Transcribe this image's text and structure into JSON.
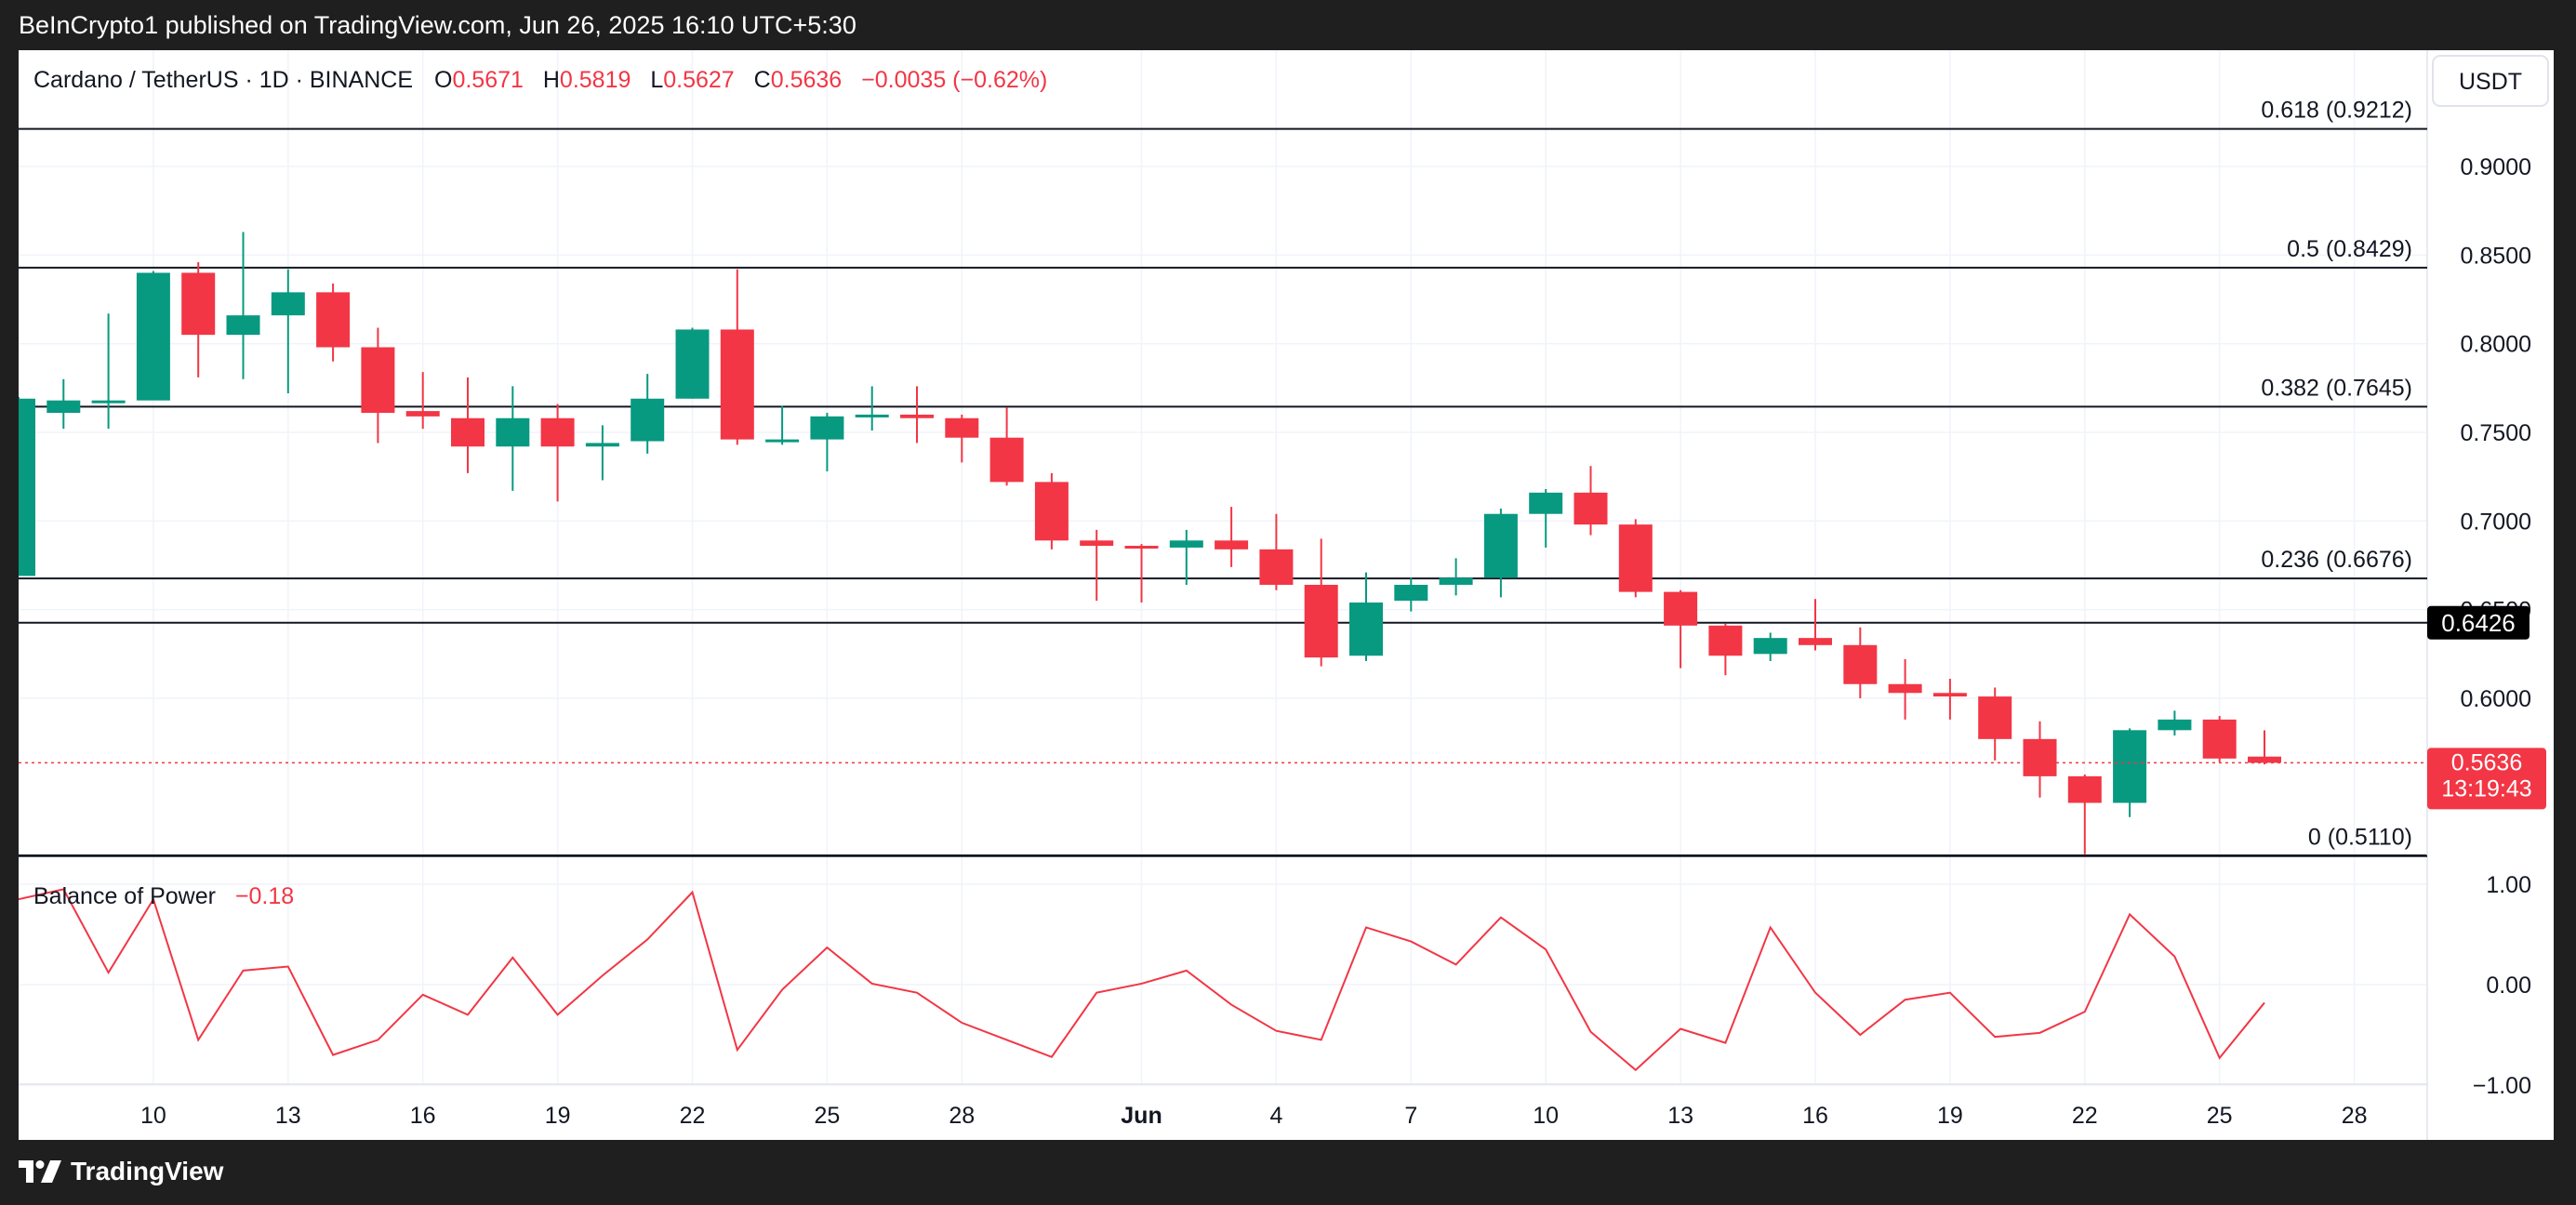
{
  "header": {
    "published": "BeInCrypto1 published on TradingView.com, Jun 26, 2025 16:10 UTC+5:30"
  },
  "symbol": {
    "name": "Cardano / TetherUS · 1D · BINANCE",
    "o_label": "O",
    "o": "0.5671",
    "h_label": "H",
    "h": "0.5819",
    "l_label": "L",
    "l": "0.5627",
    "c_label": "C",
    "c": "0.5636",
    "change": "−0.0035 (−0.62%)"
  },
  "currency": "USDT",
  "price_axis_labels": [
    "0.9000",
    "0.8500",
    "0.8000",
    "0.7500",
    "0.7000",
    "0.6500",
    "0.6000"
  ],
  "badges": {
    "level": "0.6426",
    "last_price": "0.5636",
    "countdown": "13:19:43"
  },
  "fib_levels": [
    {
      "label": "0.618 (0.9212)",
      "value": 0.9212
    },
    {
      "label": "0.5 (0.8429)",
      "value": 0.8429
    },
    {
      "label": "0.382 (0.7645)",
      "value": 0.7645
    },
    {
      "label": "0.236 (0.6676)",
      "value": 0.6676
    },
    {
      "label": "0 (0.5110)",
      "value": 0.511
    }
  ],
  "indicator": {
    "name": "Balance of Power",
    "value": "−0.18",
    "axis_labels": [
      "1.00",
      "0.00",
      "−1.00"
    ]
  },
  "x_axis_labels": [
    "10",
    "13",
    "16",
    "19",
    "22",
    "25",
    "28",
    "Jun",
    "4",
    "7",
    "10",
    "13",
    "16",
    "19",
    "22",
    "25",
    "28"
  ],
  "brand": "TradingView",
  "colors": {
    "up": "#089981",
    "down": "#f23645",
    "text": "#131722",
    "grid": "#f0f3fa"
  },
  "chart_data": {
    "type": "candlestick",
    "title": "Cardano / TetherUS · 1D · BINANCE",
    "x_start": "May 7, 2025",
    "x_end": "Jun 26, 2025",
    "ylim": [
      0.505,
      0.945
    ],
    "candles": [
      {
        "date": "May 7",
        "o": 0.669,
        "h": 0.77,
        "l": 0.669,
        "c": 0.769
      },
      {
        "date": "May 8",
        "o": 0.761,
        "h": 0.78,
        "l": 0.752,
        "c": 0.768
      },
      {
        "date": "May 9",
        "o": 0.768,
        "h": 0.817,
        "l": 0.752,
        "c": 0.768
      },
      {
        "date": "May 10",
        "o": 0.768,
        "h": 0.841,
        "l": 0.77,
        "c": 0.84
      },
      {
        "date": "May 11",
        "o": 0.84,
        "h": 0.846,
        "l": 0.781,
        "c": 0.805
      },
      {
        "date": "May 12",
        "o": 0.805,
        "h": 0.863,
        "l": 0.78,
        "c": 0.816
      },
      {
        "date": "May 13",
        "o": 0.816,
        "h": 0.842,
        "l": 0.772,
        "c": 0.829
      },
      {
        "date": "May 14",
        "o": 0.829,
        "h": 0.834,
        "l": 0.79,
        "c": 0.798
      },
      {
        "date": "May 15",
        "o": 0.798,
        "h": 0.809,
        "l": 0.744,
        "c": 0.761
      },
      {
        "date": "May 16",
        "o": 0.762,
        "h": 0.784,
        "l": 0.752,
        "c": 0.759
      },
      {
        "date": "May 17",
        "o": 0.758,
        "h": 0.781,
        "l": 0.727,
        "c": 0.742
      },
      {
        "date": "May 18",
        "o": 0.742,
        "h": 0.776,
        "l": 0.717,
        "c": 0.758
      },
      {
        "date": "May 19",
        "o": 0.758,
        "h": 0.766,
        "l": 0.711,
        "c": 0.742
      },
      {
        "date": "May 20",
        "o": 0.742,
        "h": 0.754,
        "l": 0.723,
        "c": 0.744
      },
      {
        "date": "May 21",
        "o": 0.745,
        "h": 0.783,
        "l": 0.738,
        "c": 0.769
      },
      {
        "date": "May 22",
        "o": 0.769,
        "h": 0.809,
        "l": 0.769,
        "c": 0.808
      },
      {
        "date": "May 23",
        "o": 0.808,
        "h": 0.842,
        "l": 0.743,
        "c": 0.746
      },
      {
        "date": "May 24",
        "o": 0.746,
        "h": 0.765,
        "l": 0.743,
        "c": 0.746
      },
      {
        "date": "May 25",
        "o": 0.746,
        "h": 0.761,
        "l": 0.728,
        "c": 0.759
      },
      {
        "date": "May 26",
        "o": 0.759,
        "h": 0.776,
        "l": 0.751,
        "c": 0.76
      },
      {
        "date": "May 27",
        "o": 0.76,
        "h": 0.776,
        "l": 0.744,
        "c": 0.758
      },
      {
        "date": "May 28",
        "o": 0.758,
        "h": 0.76,
        "l": 0.733,
        "c": 0.747
      },
      {
        "date": "May 29",
        "o": 0.747,
        "h": 0.764,
        "l": 0.72,
        "c": 0.722
      },
      {
        "date": "May 30",
        "o": 0.722,
        "h": 0.727,
        "l": 0.684,
        "c": 0.689
      },
      {
        "date": "May 31",
        "o": 0.689,
        "h": 0.695,
        "l": 0.655,
        "c": 0.686
      },
      {
        "date": "Jun 1",
        "o": 0.686,
        "h": 0.687,
        "l": 0.654,
        "c": 0.685
      },
      {
        "date": "Jun 2",
        "o": 0.685,
        "h": 0.695,
        "l": 0.664,
        "c": 0.689
      },
      {
        "date": "Jun 3",
        "o": 0.689,
        "h": 0.708,
        "l": 0.674,
        "c": 0.684
      },
      {
        "date": "Jun 4",
        "o": 0.684,
        "h": 0.704,
        "l": 0.661,
        "c": 0.664
      },
      {
        "date": "Jun 5",
        "o": 0.664,
        "h": 0.69,
        "l": 0.618,
        "c": 0.623
      },
      {
        "date": "Jun 6",
        "o": 0.624,
        "h": 0.671,
        "l": 0.621,
        "c": 0.654
      },
      {
        "date": "Jun 7",
        "o": 0.655,
        "h": 0.668,
        "l": 0.649,
        "c": 0.664
      },
      {
        "date": "Jun 8",
        "o": 0.664,
        "h": 0.679,
        "l": 0.658,
        "c": 0.668
      },
      {
        "date": "Jun 9",
        "o": 0.668,
        "h": 0.707,
        "l": 0.657,
        "c": 0.704
      },
      {
        "date": "Jun 10",
        "o": 0.704,
        "h": 0.718,
        "l": 0.685,
        "c": 0.716
      },
      {
        "date": "Jun 11",
        "o": 0.716,
        "h": 0.731,
        "l": 0.692,
        "c": 0.698
      },
      {
        "date": "Jun 12",
        "o": 0.698,
        "h": 0.701,
        "l": 0.657,
        "c": 0.66
      },
      {
        "date": "Jun 13",
        "o": 0.66,
        "h": 0.661,
        "l": 0.617,
        "c": 0.641
      },
      {
        "date": "Jun 14",
        "o": 0.641,
        "h": 0.642,
        "l": 0.613,
        "c": 0.624
      },
      {
        "date": "Jun 15",
        "o": 0.625,
        "h": 0.637,
        "l": 0.621,
        "c": 0.634
      },
      {
        "date": "Jun 16",
        "o": 0.634,
        "h": 0.656,
        "l": 0.627,
        "c": 0.63
      },
      {
        "date": "Jun 17",
        "o": 0.63,
        "h": 0.64,
        "l": 0.6,
        "c": 0.608
      },
      {
        "date": "Jun 18",
        "o": 0.608,
        "h": 0.622,
        "l": 0.588,
        "c": 0.603
      },
      {
        "date": "Jun 19",
        "o": 0.603,
        "h": 0.611,
        "l": 0.588,
        "c": 0.601
      },
      {
        "date": "Jun 20",
        "o": 0.601,
        "h": 0.606,
        "l": 0.565,
        "c": 0.577
      },
      {
        "date": "Jun 21",
        "o": 0.577,
        "h": 0.587,
        "l": 0.544,
        "c": 0.556
      },
      {
        "date": "Jun 22",
        "o": 0.556,
        "h": 0.557,
        "l": 0.512,
        "c": 0.541
      },
      {
        "date": "Jun 23",
        "o": 0.541,
        "h": 0.583,
        "l": 0.533,
        "c": 0.582
      },
      {
        "date": "Jun 24",
        "o": 0.582,
        "h": 0.593,
        "l": 0.579,
        "c": 0.588
      },
      {
        "date": "Jun 25",
        "o": 0.588,
        "h": 0.59,
        "l": 0.564,
        "c": 0.566
      },
      {
        "date": "Jun 26",
        "o": 0.5671,
        "h": 0.5819,
        "l": 0.5627,
        "c": 0.5636
      }
    ],
    "bop": [
      0.85,
      0.95,
      0.12,
      0.85,
      -0.55,
      0.14,
      0.18,
      -0.7,
      -0.55,
      -0.1,
      -0.3,
      0.27,
      -0.3,
      0.09,
      0.45,
      0.92,
      -0.65,
      -0.05,
      0.37,
      0.01,
      -0.08,
      -0.38,
      -0.55,
      -0.72,
      -0.08,
      0.01,
      0.14,
      -0.2,
      -0.46,
      -0.55,
      0.57,
      0.43,
      0.2,
      0.67,
      0.35,
      -0.47,
      -0.85,
      -0.44,
      -0.58,
      0.57,
      -0.08,
      -0.5,
      -0.15,
      -0.08,
      -0.52,
      -0.48,
      -0.27,
      0.7,
      0.28,
      -0.73,
      -0.18
    ],
    "bop_ylim": [
      -1,
      1
    ]
  }
}
